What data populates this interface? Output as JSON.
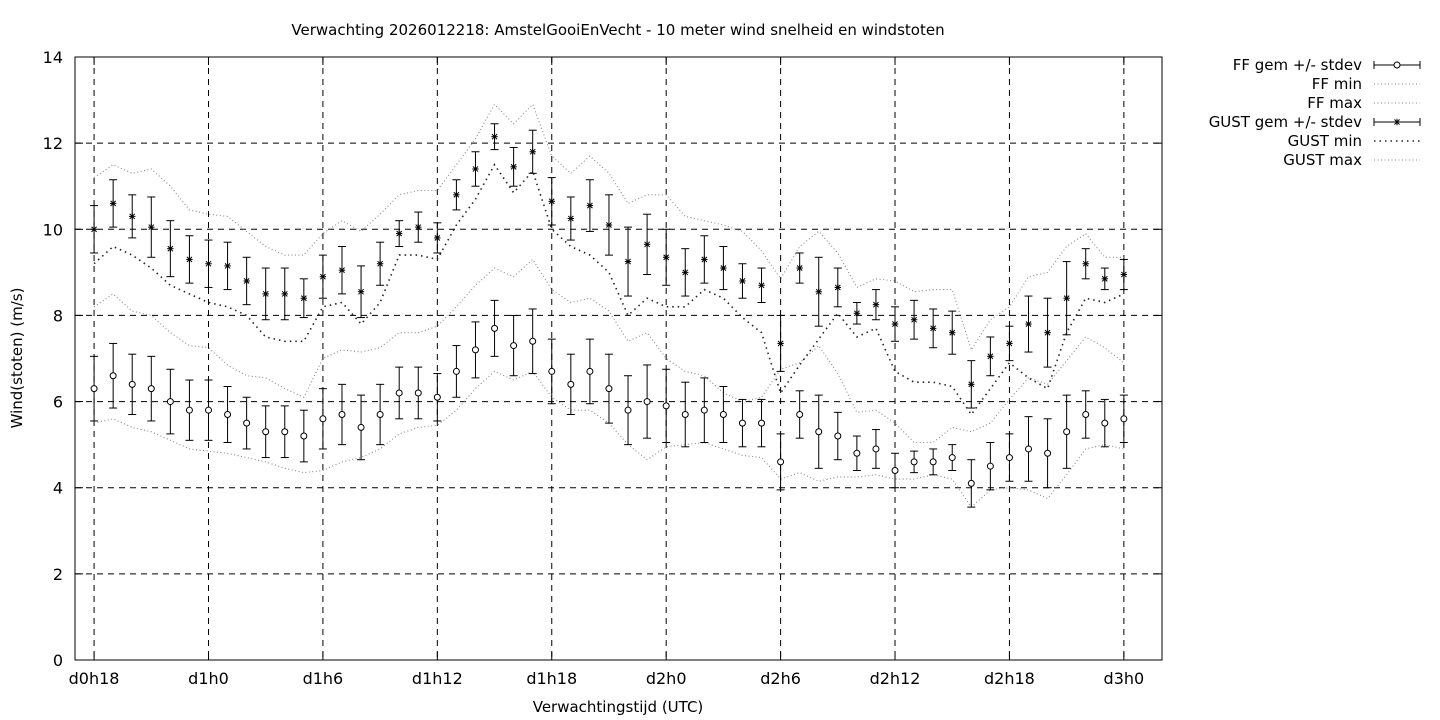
{
  "chart_data": {
    "type": "line",
    "title": "Verwachting 2026012218: AmstelGooiEnVecht - 10 meter wind snelheid en windstoten",
    "xlabel": "Verwachtingstijd (UTC)",
    "ylabel": "Wind(stoten) (m/s)",
    "ylim": [
      0,
      14
    ],
    "yticks": [
      "0",
      "2",
      "4",
      "6",
      "8",
      "10",
      "12",
      "14"
    ],
    "xlim": [
      17,
      74
    ],
    "xticks": [
      {
        "x": 18,
        "label": "d0h18"
      },
      {
        "x": 24,
        "label": "d1h0"
      },
      {
        "x": 30,
        "label": "d1h6"
      },
      {
        "x": 36,
        "label": "d1h12"
      },
      {
        "x": 42,
        "label": "d1h18"
      },
      {
        "x": 48,
        "label": "d2h0"
      },
      {
        "x": 54,
        "label": "d2h6"
      },
      {
        "x": 60,
        "label": "d2h12"
      },
      {
        "x": 66,
        "label": "d2h18"
      },
      {
        "x": 72,
        "label": "d3h0"
      }
    ],
    "grid": true,
    "legend_position": "outside-top-right",
    "x": [
      18,
      19,
      20,
      21,
      22,
      23,
      24,
      25,
      26,
      27,
      28,
      29,
      30,
      31,
      32,
      33,
      34,
      35,
      36,
      37,
      38,
      39,
      40,
      41,
      42,
      43,
      44,
      45,
      46,
      47,
      48,
      49,
      50,
      51,
      52,
      53,
      54,
      55,
      56,
      57,
      58,
      59,
      60,
      61,
      62,
      63,
      64,
      65,
      66,
      67,
      68,
      69,
      70,
      71,
      72
    ],
    "series": [
      {
        "name": "FF gem +/- stdev",
        "kind": "errorbar-circle",
        "values": [
          6.3,
          6.6,
          6.4,
          6.3,
          6.0,
          5.8,
          5.8,
          5.7,
          5.5,
          5.3,
          5.3,
          5.2,
          5.6,
          5.7,
          5.4,
          5.7,
          6.2,
          6.2,
          6.1,
          6.7,
          7.2,
          7.7,
          7.3,
          7.4,
          6.7,
          6.4,
          6.7,
          6.3,
          5.8,
          6.0,
          5.9,
          5.7,
          5.8,
          5.7,
          5.5,
          5.5,
          4.6,
          5.7,
          5.3,
          5.2,
          4.8,
          4.9,
          4.4,
          4.6,
          4.6,
          4.7,
          4.1,
          4.5,
          4.7,
          4.9,
          4.8,
          5.3,
          5.7,
          5.5,
          5.6
        ],
        "stdev": [
          0.75,
          0.75,
          0.7,
          0.75,
          0.75,
          0.7,
          0.7,
          0.65,
          0.6,
          0.6,
          0.6,
          0.6,
          0.7,
          0.7,
          0.75,
          0.7,
          0.6,
          0.6,
          0.55,
          0.6,
          0.65,
          0.65,
          0.7,
          0.75,
          0.75,
          0.7,
          0.75,
          0.8,
          0.8,
          0.85,
          0.85,
          0.75,
          0.75,
          0.65,
          0.55,
          0.55,
          0.65,
          0.55,
          0.85,
          0.55,
          0.4,
          0.45,
          0.4,
          0.25,
          0.3,
          0.3,
          0.55,
          0.55,
          0.55,
          0.75,
          0.8,
          0.85,
          0.55,
          0.55,
          0.55
        ],
        "color": "#000000"
      },
      {
        "name": "FF min",
        "kind": "dotted",
        "values": [
          5.5,
          5.6,
          5.4,
          5.3,
          5.1,
          4.9,
          4.85,
          4.8,
          4.7,
          4.6,
          4.45,
          4.35,
          4.4,
          4.6,
          4.7,
          4.9,
          5.25,
          5.4,
          5.45,
          5.8,
          6.3,
          6.7,
          6.5,
          6.7,
          6.1,
          5.8,
          5.8,
          5.5,
          5.0,
          4.65,
          4.95,
          5.0,
          5.05,
          4.9,
          4.75,
          4.7,
          4.2,
          4.35,
          4.15,
          4.25,
          4.25,
          4.3,
          4.2,
          4.2,
          4.3,
          4.2,
          3.55,
          3.95,
          4.0,
          3.95,
          3.75,
          4.3,
          4.9,
          5.0,
          4.9
        ],
        "color": "#888888"
      },
      {
        "name": "FF max",
        "kind": "dotted",
        "values": [
          8.2,
          8.5,
          8.1,
          8.0,
          7.6,
          7.3,
          7.25,
          6.85,
          6.6,
          6.55,
          6.3,
          6.1,
          7.0,
          7.2,
          7.15,
          7.25,
          7.6,
          7.6,
          7.75,
          8.2,
          8.7,
          9.1,
          8.9,
          9.3,
          8.6,
          8.3,
          8.4,
          8.1,
          7.4,
          7.6,
          7.0,
          6.7,
          6.6,
          6.2,
          6.0,
          6.1,
          6.75,
          6.9,
          7.3,
          6.65,
          5.75,
          5.8,
          5.5,
          5.05,
          5.05,
          5.4,
          5.3,
          5.5,
          6.05,
          6.55,
          6.4,
          6.95,
          7.5,
          7.25,
          6.9
        ],
        "color": "#888888"
      },
      {
        "name": "GUST gem +/- stdev",
        "kind": "errorbar-star",
        "values": [
          10.0,
          10.6,
          10.3,
          10.05,
          9.55,
          9.3,
          9.2,
          9.15,
          8.8,
          8.5,
          8.5,
          8.4,
          8.9,
          9.05,
          8.55,
          9.2,
          9.9,
          10.05,
          9.8,
          10.8,
          11.4,
          12.15,
          11.45,
          11.8,
          10.65,
          10.25,
          10.55,
          10.1,
          9.25,
          9.65,
          9.35,
          9.0,
          9.3,
          9.1,
          8.8,
          8.7,
          7.35,
          9.1,
          8.55,
          8.65,
          8.05,
          8.25,
          7.8,
          7.9,
          7.7,
          7.6,
          6.4,
          7.05,
          7.35,
          7.8,
          7.6,
          8.4,
          9.2,
          8.85,
          8.95
        ],
        "stdev": [
          0.55,
          0.55,
          0.5,
          0.7,
          0.65,
          0.55,
          0.55,
          0.55,
          0.55,
          0.6,
          0.6,
          0.45,
          0.5,
          0.55,
          0.6,
          0.5,
          0.3,
          0.35,
          0.35,
          0.35,
          0.4,
          0.3,
          0.45,
          0.5,
          0.55,
          0.5,
          0.6,
          0.7,
          0.8,
          0.7,
          0.65,
          0.55,
          0.55,
          0.5,
          0.4,
          0.4,
          0.65,
          0.35,
          0.8,
          0.45,
          0.25,
          0.35,
          0.4,
          0.45,
          0.45,
          0.5,
          0.55,
          0.45,
          0.4,
          0.65,
          0.8,
          0.85,
          0.35,
          0.25,
          0.35
        ],
        "color": "#000000"
      },
      {
        "name": "GUST min",
        "kind": "dotted",
        "values": [
          9.2,
          9.6,
          9.4,
          9.1,
          8.7,
          8.5,
          8.3,
          8.2,
          8.0,
          7.5,
          7.4,
          7.4,
          8.2,
          8.3,
          7.8,
          8.3,
          9.4,
          9.4,
          9.3,
          10.1,
          10.7,
          11.5,
          10.85,
          11.35,
          10.0,
          9.6,
          9.4,
          9.0,
          8.0,
          8.4,
          8.2,
          8.2,
          8.6,
          8.4,
          7.95,
          7.6,
          6.2,
          6.85,
          7.45,
          8.05,
          7.5,
          7.7,
          6.7,
          6.45,
          6.45,
          6.35,
          5.7,
          6.3,
          6.9,
          6.55,
          6.3,
          7.6,
          8.4,
          8.3,
          8.5
        ],
        "color": "#222222"
      },
      {
        "name": "GUST max",
        "kind": "dotted",
        "values": [
          11.2,
          11.5,
          11.3,
          11.4,
          11.0,
          10.45,
          10.35,
          10.3,
          9.95,
          9.6,
          9.4,
          9.4,
          9.9,
          10.2,
          9.95,
          10.35,
          10.8,
          10.9,
          10.9,
          11.5,
          12.1,
          12.9,
          12.45,
          12.9,
          11.7,
          11.3,
          11.7,
          11.3,
          10.6,
          10.8,
          10.8,
          10.3,
          10.2,
          10.1,
          9.95,
          9.5,
          8.85,
          9.6,
          9.95,
          9.45,
          8.65,
          8.85,
          8.8,
          8.55,
          8.6,
          8.6,
          7.2,
          7.9,
          8.2,
          8.9,
          9.0,
          9.6,
          9.9,
          9.35,
          9.35
        ],
        "color": "#888888"
      }
    ]
  }
}
